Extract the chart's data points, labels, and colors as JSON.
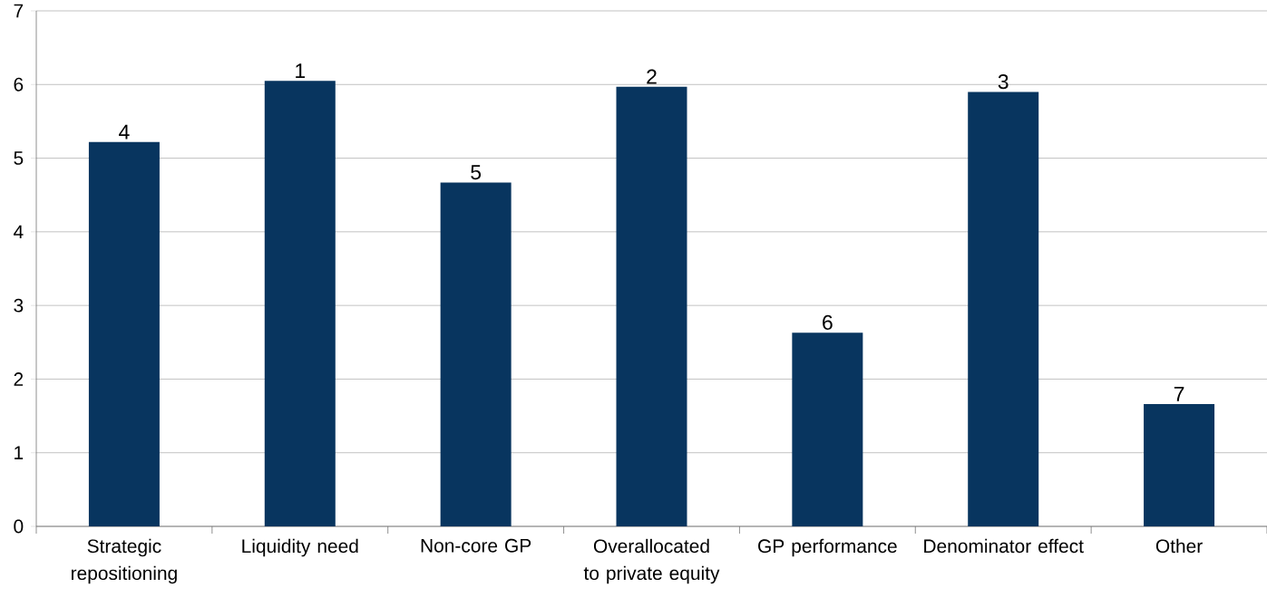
{
  "chart_data": {
    "type": "bar",
    "categories": [
      "Strategic repositioning",
      "Liquidity need",
      "Non-core GP",
      "Overallocated to private equity",
      "GP performance",
      "Denominator effect",
      "Other"
    ],
    "values": [
      5.22,
      6.05,
      4.67,
      5.97,
      2.63,
      5.9,
      1.66
    ],
    "annotations": [
      {
        "text": "4",
        "x": "Strategic repositioning",
        "y": 5.22
      },
      {
        "text": "1",
        "x": "Liquidity need",
        "y": 6.05
      },
      {
        "text": "5",
        "x": "Non-core GP",
        "y": 4.67
      },
      {
        "text": "2",
        "x": "Overallocated to private equity",
        "y": 5.97
      },
      {
        "text": "6",
        "x": "GP performance",
        "y": 2.63
      },
      {
        "text": "3",
        "x": "Denominator effect",
        "y": 5.9
      },
      {
        "text": "7",
        "x": "Other",
        "y": 1.66
      }
    ],
    "color": "#08355f",
    "ylim": [
      0,
      7
    ],
    "yticks": [
      0,
      1,
      2,
      3,
      4,
      5,
      6,
      7
    ],
    "grid": "y"
  }
}
